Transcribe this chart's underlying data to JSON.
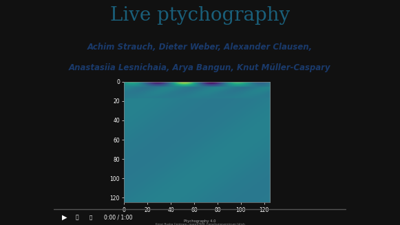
{
  "title": "Live ptychography",
  "title_color": "#1a5f7a",
  "title_fontsize": 20,
  "authors_line1": "Achim Strauch, Dieter Weber, Alexander Clausen,",
  "authors_line2": "Anastasiia Lesnichaia, Arya Bangun, Knut Müller-Caspary",
  "authors_color": "#1a3a6b",
  "authors_fontsize": 8.5,
  "content_bg_color": "#e0e0e0",
  "outer_bg_color": "#111111",
  "ctrl_bg_color": "#222222",
  "plot_xlim": [
    0,
    125
  ],
  "plot_ylim": [
    125,
    0
  ],
  "yticks": [
    0,
    20,
    40,
    60,
    80,
    100,
    120
  ],
  "xticks": [
    0,
    20,
    40,
    60,
    80,
    100,
    120
  ],
  "image_rows": 128,
  "image_cols": 128
}
